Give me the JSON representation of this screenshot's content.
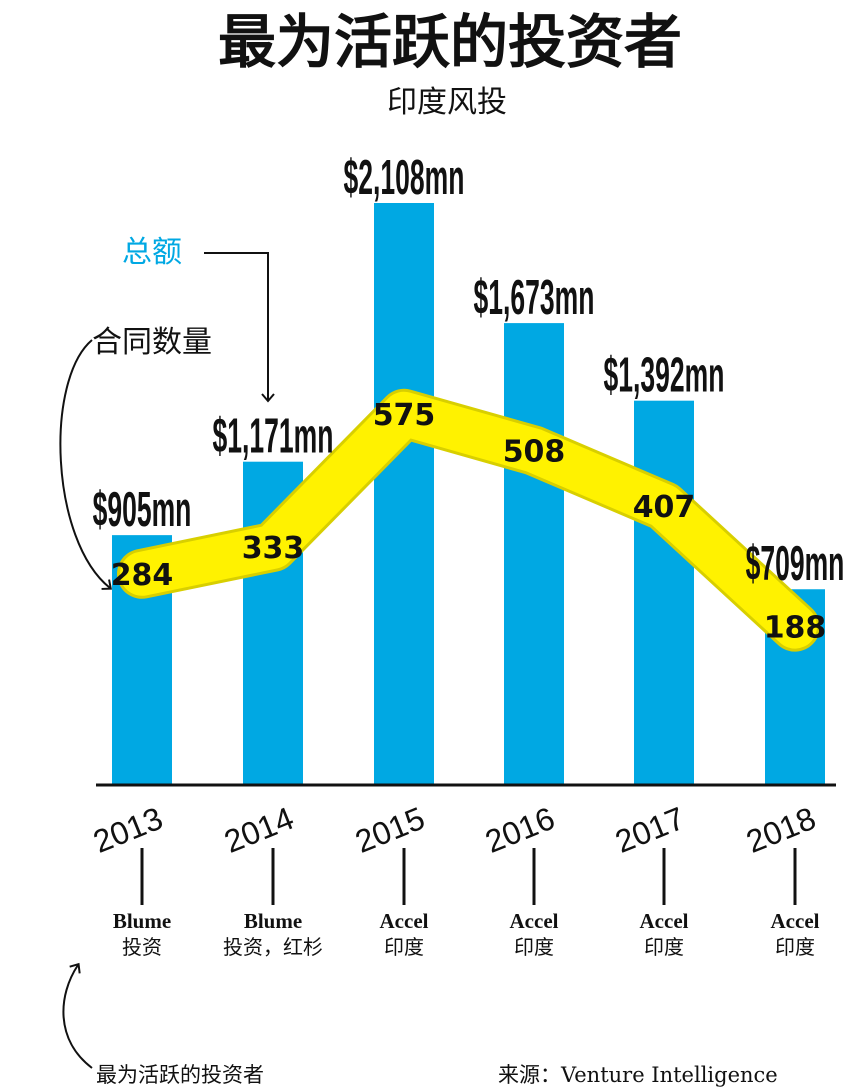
{
  "header": {
    "title": "最为活跃的投资者",
    "subtitle": "印度风投"
  },
  "legend": {
    "total_label": "总额",
    "count_label": "合同数量"
  },
  "colors": {
    "bar": "#00A8E3",
    "line": "#FFF200",
    "text": "#111111",
    "legend_total": "#00A8E3"
  },
  "chart_data": {
    "type": "bar",
    "categories": [
      "2013",
      "2014",
      "2015",
      "2016",
      "2017",
      "2018"
    ],
    "values": [
      905,
      1171,
      2108,
      1673,
      1392,
      709
    ],
    "value_labels": [
      "$905mn",
      "$1,171mn",
      "$2,108mn",
      "$1,673mn",
      "$1,392mn",
      "$709mn"
    ],
    "line_values": [
      284,
      333,
      575,
      508,
      407,
      188
    ],
    "ylim": [
      0,
      2108
    ],
    "investors": [
      [
        "Blume",
        "投资"
      ],
      [
        "Blume",
        "投资，红杉"
      ],
      [
        "Accel",
        "印度"
      ],
      [
        "Accel",
        "印度"
      ],
      [
        "Accel",
        "印度"
      ],
      [
        "Accel",
        "印度"
      ]
    ]
  },
  "footer": {
    "note": "最为活跃的投资者",
    "source": "来源：Venture Intelligence"
  }
}
